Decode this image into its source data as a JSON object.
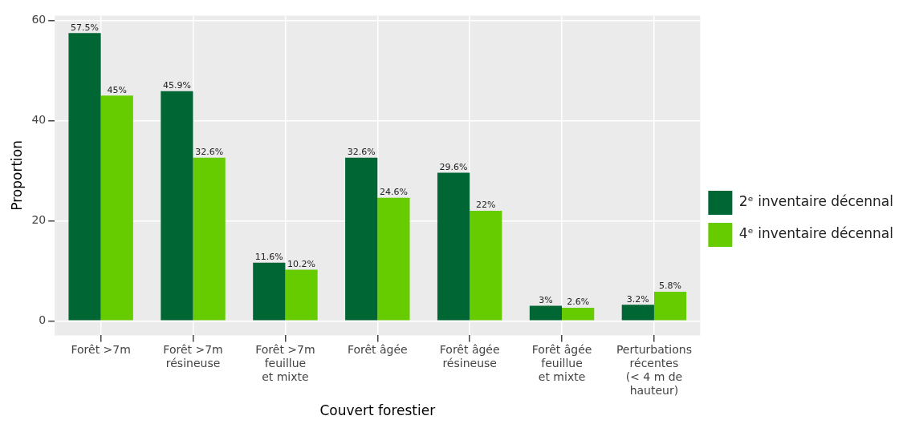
{
  "chart_data": {
    "type": "bar",
    "xlabel": "Couvert forestier",
    "ylabel": "Proportion",
    "categories": [
      "Forêt >7m",
      "Forêt >7m\nrésineuse",
      "Forêt >7m\nfeuillue\net mixte",
      "Forêt âgée",
      "Forêt âgée\nrésineuse",
      "Forêt âgée\nfeuillue\net mixte",
      "Perturbations\nrécentes\n(< 4 m de\nhauteur)"
    ],
    "series": [
      {
        "name": "2ᵉ inventaire décennal",
        "color": "#006633",
        "values": [
          57.5,
          45.9,
          11.6,
          32.6,
          29.6,
          3,
          3.2
        ],
        "value_labels": [
          "57.5%",
          "45.9%",
          "11.6%",
          "32.6%",
          "29.6%",
          "3%",
          "3.2%"
        ]
      },
      {
        "name": "4ᵉ inventaire décennal",
        "color": "#66cc00",
        "values": [
          45,
          32.6,
          10.2,
          24.6,
          22,
          2.6,
          5.8
        ],
        "value_labels": [
          "45%",
          "32.6%",
          "10.2%",
          "24.6%",
          "22%",
          "2.6%",
          "5.8%"
        ]
      }
    ],
    "ylim": [
      -2.9,
      61
    ],
    "yticks": [
      0,
      20,
      40,
      60
    ],
    "grid": true,
    "legend": "right"
  }
}
